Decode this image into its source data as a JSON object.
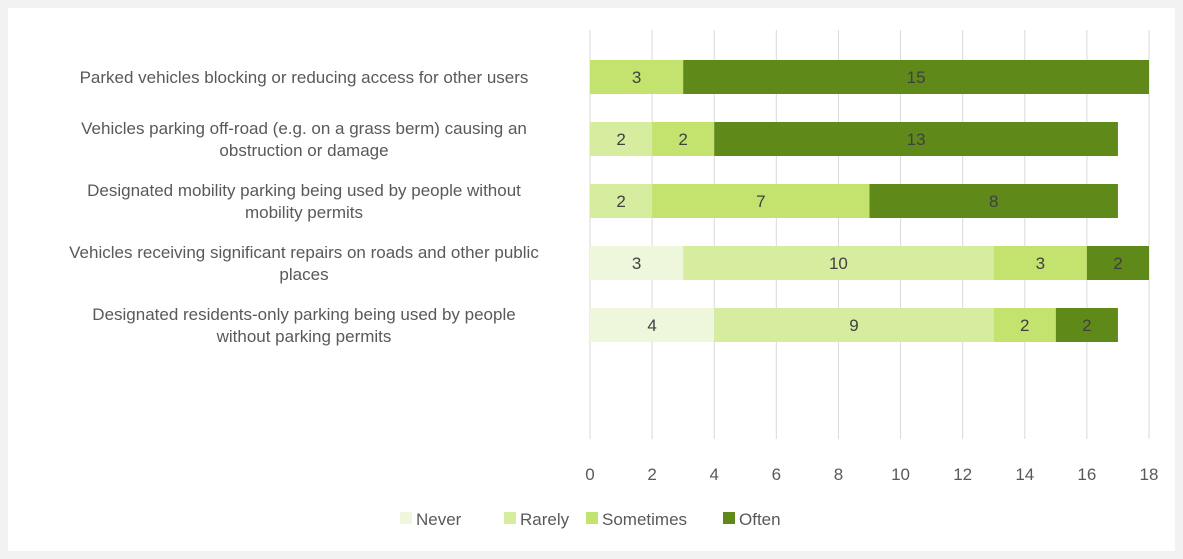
{
  "chart_data": {
    "type": "bar",
    "orientation": "horizontal",
    "stacked": true,
    "title": "",
    "xlabel": "",
    "ylabel": "",
    "categories": [
      "Parked vehicles blocking or reducing access for other users",
      "Vehicles parking off-road (e.g. on a grass berm) causing an obstruction or damage",
      "Designated mobility parking being used by people without mobility permits",
      "Vehicles receiving significant repairs on roads and other public places",
      "Designated residents-only parking being used by people without parking permits"
    ],
    "category_lines": [
      [
        "Parked vehicles blocking or reducing access for other users"
      ],
      [
        "Vehicles parking off-road (e.g. on a grass berm) causing an",
        "obstruction or damage"
      ],
      [
        "Designated mobility parking being used by people without",
        "mobility permits"
      ],
      [
        "Vehicles receiving significant repairs on roads and other public",
        "places"
      ],
      [
        "Designated residents-only parking being used by people",
        "without parking permits"
      ]
    ],
    "series": [
      {
        "name": "Never",
        "color": "#eef6dc",
        "values": [
          0,
          0,
          0,
          3,
          4
        ]
      },
      {
        "name": "Rarely",
        "color": "#d6ec9f",
        "values": [
          0,
          2,
          2,
          10,
          9
        ]
      },
      {
        "name": "Sometimes",
        "color": "#c3e36e",
        "values": [
          3,
          2,
          7,
          3,
          2
        ]
      },
      {
        "name": "Often",
        "color": "#5f8a1a",
        "values": [
          15,
          13,
          8,
          2,
          2
        ]
      }
    ],
    "xlim": [
      0,
      18
    ],
    "xticks": [
      0,
      2,
      4,
      6,
      8,
      10,
      12,
      14,
      16,
      18
    ],
    "grid": true,
    "legend_position": "bottom"
  }
}
